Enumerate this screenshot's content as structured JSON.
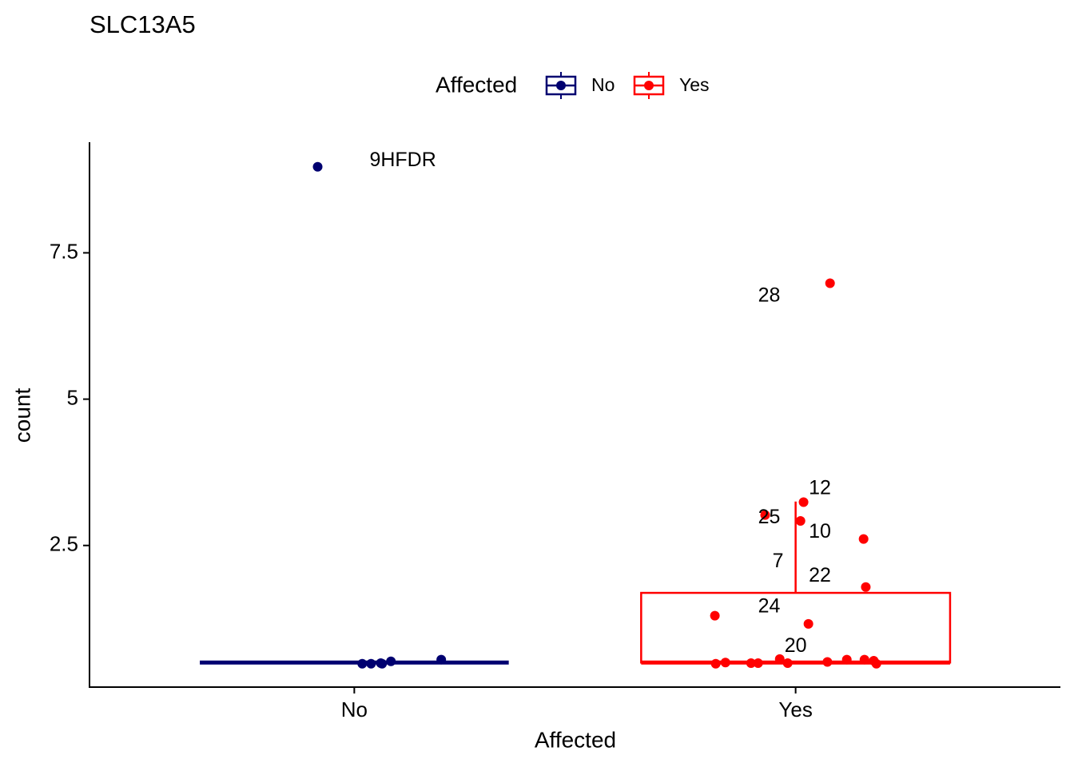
{
  "chart_data": {
    "type": "box",
    "title": "SLC13A5",
    "xlabel": "Affected",
    "ylabel": "count",
    "legend_title": "Affected",
    "xlim": [
      0.4,
      2.6
    ],
    "xticks": [
      {
        "value": 1,
        "label": "No"
      },
      {
        "value": 2,
        "label": "Yes"
      }
    ],
    "ylim": [
      0.08,
      9.39
    ],
    "yticks": [
      2.5,
      5.0,
      7.5
    ],
    "series": [
      {
        "name": "No",
        "color": "#000070",
        "position": 1,
        "box": {
          "lower": 0.5,
          "q1": 0.5,
          "median": 0.5,
          "q3": 0.5,
          "upper": 0.5
        },
        "points": {
          "x": [
            0.917,
            1.018,
            1.038,
            1.06,
            1.063,
            1.083,
            1.197
          ],
          "y": [
            8.97,
            0.48,
            0.48,
            0.49,
            0.48,
            0.52,
            0.55
          ]
        }
      },
      {
        "name": "Yes",
        "color": "#ff0000",
        "position": 2,
        "box": {
          "lower": 0.5,
          "q1": 0.5,
          "median": 0.5,
          "q3": 1.69,
          "upper": 3.25
        },
        "points": {
          "x": [
            2.078,
            2.018,
            1.931,
            2.011,
            2.154,
            2.159,
            1.817,
            2.029,
            1.819,
            1.841,
            1.899,
            1.915,
            1.964,
            1.982,
            2.072,
            2.116,
            2.156,
            2.177,
            2.183
          ],
          "y": [
            6.98,
            3.24,
            3.02,
            2.92,
            2.61,
            1.79,
            1.3,
            1.16,
            0.48,
            0.5,
            0.49,
            0.49,
            0.56,
            0.49,
            0.51,
            0.55,
            0.55,
            0.53,
            0.48
          ]
        }
      }
    ],
    "annotations": [
      {
        "text": "9HFDR",
        "x": 1.11,
        "y": 9.07
      },
      {
        "text": "28",
        "x": 1.94,
        "y": 6.76
      },
      {
        "text": "12",
        "x": 2.055,
        "y": 3.47
      },
      {
        "text": "25",
        "x": 1.94,
        "y": 2.97
      },
      {
        "text": "10",
        "x": 2.055,
        "y": 2.72
      },
      {
        "text": "7",
        "x": 1.96,
        "y": 2.22
      },
      {
        "text": "22",
        "x": 2.055,
        "y": 1.97
      },
      {
        "text": "24",
        "x": 1.94,
        "y": 1.45
      },
      {
        "text": "20",
        "x": 2.0,
        "y": 0.77
      }
    ]
  }
}
